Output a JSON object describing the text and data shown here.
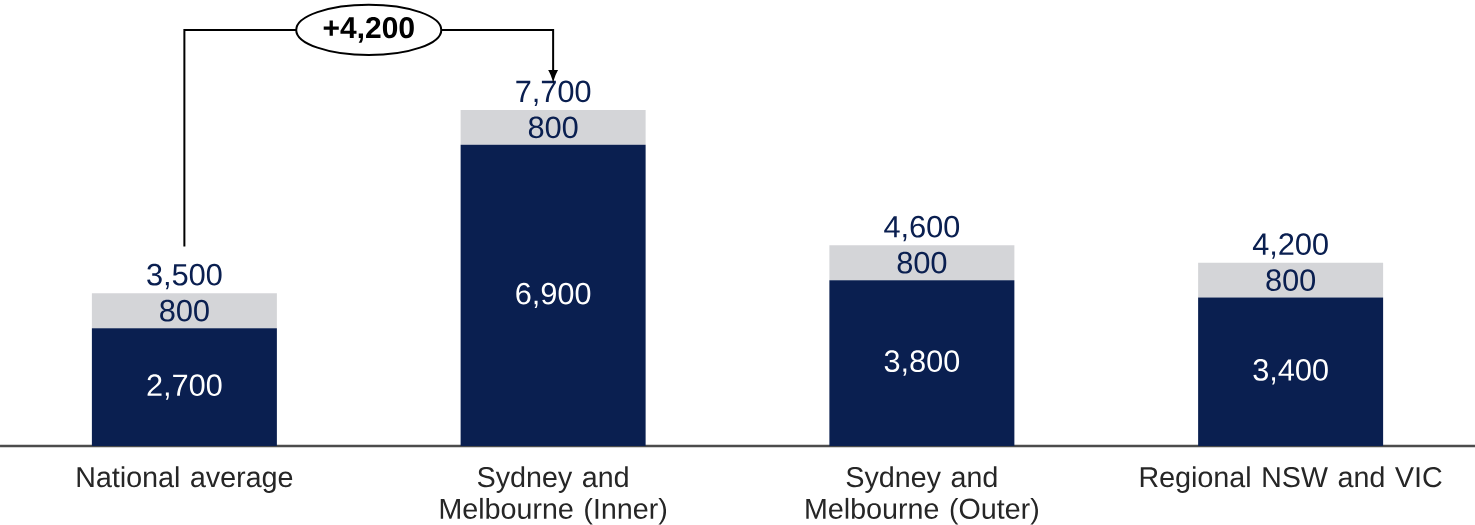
{
  "chart_data": {
    "type": "bar",
    "stacked": true,
    "categories": [
      "National average",
      "Sydney and Melbourne (Inner)",
      "Sydney and Melbourne (Outer)",
      "Regional NSW and VIC"
    ],
    "series": [
      {
        "color": "#0a1f50",
        "values": [
          2700,
          6900,
          3800,
          3400
        ],
        "value_labels": [
          "2,700",
          "6,900",
          "3,800",
          "3,400"
        ]
      },
      {
        "color": "#d4d5d8",
        "values": [
          800,
          800,
          800,
          800
        ],
        "value_labels": [
          "800",
          "800",
          "800",
          "800"
        ]
      }
    ],
    "totals": [
      "3,500",
      "7,700",
      "4,600",
      "4,200"
    ],
    "annotations": [
      "+4,200"
    ]
  }
}
